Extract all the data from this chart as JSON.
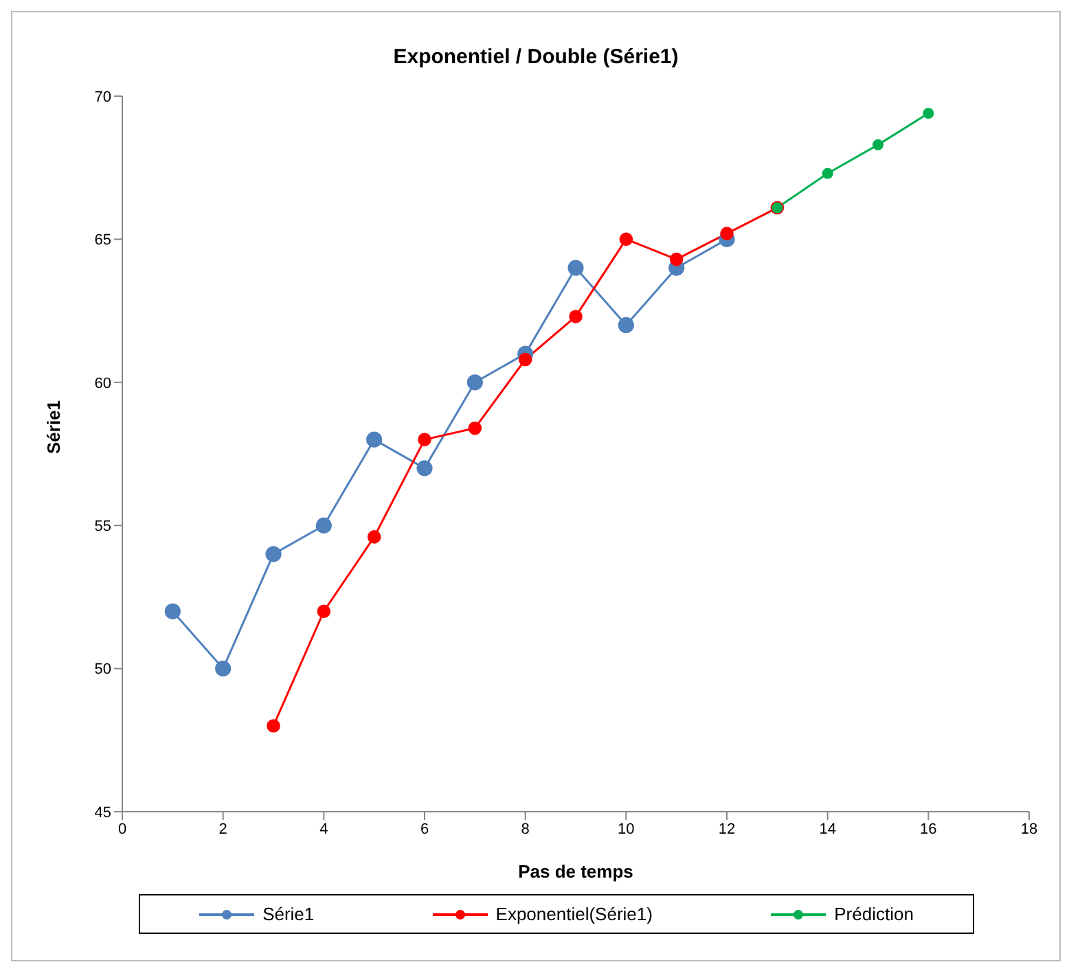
{
  "chart_data": {
    "type": "line",
    "title": "Exponentiel / Double (Série1)",
    "xlabel": "Pas de temps",
    "ylabel": "Série1",
    "xlim": [
      0,
      18
    ],
    "xticks": [
      0,
      2,
      4,
      6,
      8,
      10,
      12,
      14,
      16,
      18
    ],
    "ylim": [
      45,
      70
    ],
    "yticks": [
      45,
      50,
      55,
      60,
      65,
      70
    ],
    "grid": false,
    "legend": "bottom",
    "marker": "circle",
    "line_style": "solid",
    "series": [
      {
        "name": "Série1",
        "color": "#4f81bd",
        "x": [
          1,
          2,
          3,
          4,
          5,
          6,
          7,
          8,
          9,
          10,
          11,
          12
        ],
        "values": [
          52,
          50,
          54,
          55,
          58,
          57,
          60,
          61,
          64,
          62,
          64,
          65
        ]
      },
      {
        "name": "Exponentiel(Série1)",
        "color": "#ff0000",
        "x": [
          3,
          4,
          5,
          6,
          7,
          8,
          9,
          10,
          11,
          12,
          13
        ],
        "values": [
          48,
          52,
          54.6,
          58,
          58.4,
          60.8,
          62.3,
          65,
          64.3,
          65.2,
          66.1
        ]
      },
      {
        "name": "Prédiction",
        "color": "#00b050",
        "x": [
          13,
          14,
          15,
          16
        ],
        "values": [
          66.1,
          67.3,
          68.3,
          69.4
        ]
      }
    ]
  }
}
